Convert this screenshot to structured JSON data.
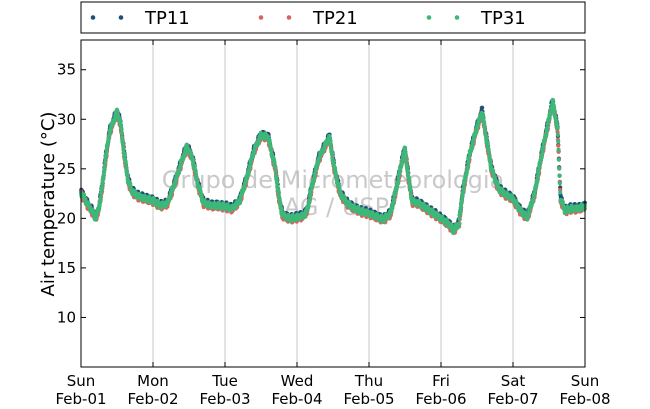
{
  "chart_data": {
    "type": "scatter",
    "ylabel": "Air temperature (°C)",
    "ylim": [
      5,
      38
    ],
    "yticks": [
      10,
      15,
      20,
      25,
      30,
      35
    ],
    "x_range": [
      "2015-02-01 00:00",
      "2015-02-08 00:00"
    ],
    "xticks": [
      {
        "day": "Sun",
        "date": "Feb-01"
      },
      {
        "day": "Mon",
        "date": "Feb-02"
      },
      {
        "day": "Tue",
        "date": "Feb-03"
      },
      {
        "day": "Wed",
        "date": "Feb-04"
      },
      {
        "day": "Thu",
        "date": "Feb-05"
      },
      {
        "day": "Fri",
        "date": "Feb-06"
      },
      {
        "day": "Sat",
        "date": "Feb-07"
      },
      {
        "day": "Sun",
        "date": "Feb-08"
      }
    ],
    "grid": "vertical",
    "legend": "top",
    "watermark": [
      "Grupo de Micrometeorologia",
      "IAG / USP"
    ],
    "series": [
      {
        "name": "TP11",
        "color": "#1f4e79",
        "offset": 0.15
      },
      {
        "name": "TP21",
        "color": "#d9645e",
        "offset": -0.15
      },
      {
        "name": "TP31",
        "color": "#3cb878",
        "offset": 0
      }
    ],
    "base_profile": [
      [
        0.0,
        22.6
      ],
      [
        0.05,
        22.0
      ],
      [
        0.1,
        21.3
      ],
      [
        0.15,
        20.8
      ],
      [
        0.2,
        20.0
      ],
      [
        0.25,
        21.0
      ],
      [
        0.3,
        23.5
      ],
      [
        0.35,
        26.5
      ],
      [
        0.4,
        28.8
      ],
      [
        0.45,
        29.8
      ],
      [
        0.5,
        30.8
      ],
      [
        0.55,
        29.5
      ],
      [
        0.6,
        26.5
      ],
      [
        0.65,
        24.0
      ],
      [
        0.7,
        22.8
      ],
      [
        0.8,
        22.2
      ],
      [
        0.9,
        22.0
      ],
      [
        1.0,
        21.8
      ],
      [
        1.1,
        21.3
      ],
      [
        1.2,
        21.5
      ],
      [
        1.3,
        23.5
      ],
      [
        1.4,
        25.8
      ],
      [
        1.47,
        27.3
      ],
      [
        1.55,
        26.0
      ],
      [
        1.62,
        23.5
      ],
      [
        1.7,
        21.6
      ],
      [
        1.8,
        21.3
      ],
      [
        1.9,
        21.3
      ],
      [
        2.0,
        21.2
      ],
      [
        2.1,
        21.0
      ],
      [
        2.2,
        21.7
      ],
      [
        2.3,
        24.0
      ],
      [
        2.4,
        26.8
      ],
      [
        2.5,
        28.4
      ],
      [
        2.6,
        28.2
      ],
      [
        2.7,
        25.0
      ],
      [
        2.75,
        22.0
      ],
      [
        2.8,
        20.3
      ],
      [
        2.9,
        20.0
      ],
      [
        3.0,
        20.1
      ],
      [
        3.1,
        20.3
      ],
      [
        3.15,
        21.0
      ],
      [
        3.2,
        23.0
      ],
      [
        3.3,
        26.0
      ],
      [
        3.4,
        27.5
      ],
      [
        3.45,
        28.2
      ],
      [
        3.52,
        25.0
      ],
      [
        3.6,
        22.5
      ],
      [
        3.7,
        21.5
      ],
      [
        3.8,
        21.0
      ],
      [
        3.9,
        20.7
      ],
      [
        4.0,
        20.5
      ],
      [
        4.1,
        20.2
      ],
      [
        4.2,
        19.9
      ],
      [
        4.3,
        20.5
      ],
      [
        4.38,
        23.0
      ],
      [
        4.45,
        25.5
      ],
      [
        4.5,
        27.0
      ],
      [
        4.55,
        24.0
      ],
      [
        4.6,
        21.7
      ],
      [
        4.7,
        21.5
      ],
      [
        4.8,
        21.0
      ],
      [
        4.9,
        20.5
      ],
      [
        5.0,
        20.0
      ],
      [
        5.1,
        19.5
      ],
      [
        5.17,
        18.8
      ],
      [
        5.25,
        19.5
      ],
      [
        5.3,
        22.5
      ],
      [
        5.4,
        26.5
      ],
      [
        5.5,
        29.2
      ],
      [
        5.57,
        30.8
      ],
      [
        5.62,
        28.5
      ],
      [
        5.7,
        25.0
      ],
      [
        5.8,
        23.0
      ],
      [
        5.9,
        22.4
      ],
      [
        6.0,
        22.0
      ],
      [
        6.1,
        20.8
      ],
      [
        6.2,
        20.1
      ],
      [
        6.3,
        22.5
      ],
      [
        6.4,
        26.5
      ],
      [
        6.5,
        30.0
      ],
      [
        6.55,
        31.8
      ],
      [
        6.62,
        29.0
      ],
      [
        6.66,
        22.0
      ],
      [
        6.72,
        20.8
      ],
      [
        6.8,
        21.0
      ],
      [
        6.9,
        21.0
      ],
      [
        7.0,
        21.2
      ]
    ]
  }
}
